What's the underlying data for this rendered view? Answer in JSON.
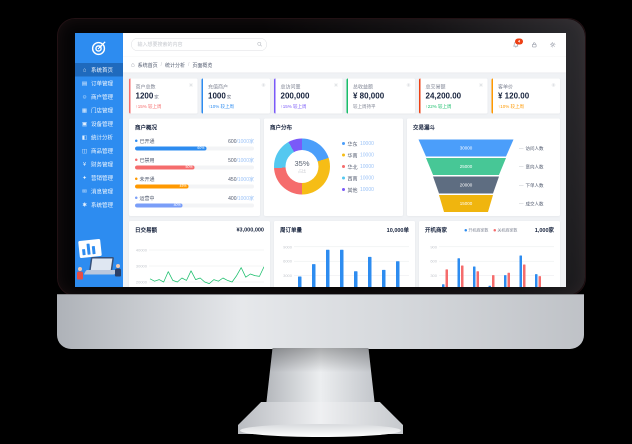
{
  "header": {
    "search_placeholder": "输入想要搜索的内容",
    "notification_badge": "4",
    "breadcrumb": {
      "items": [
        "系统首页",
        "统计分析",
        "页面概览"
      ]
    }
  },
  "sidebar": {
    "items": [
      {
        "icon": "home",
        "label": "系统首页",
        "active": true
      },
      {
        "icon": "order",
        "label": "订单管理",
        "active": false
      },
      {
        "icon": "user",
        "label": "商户管理",
        "active": false
      },
      {
        "icon": "store",
        "label": "门店管理",
        "active": false
      },
      {
        "icon": "device",
        "label": "设备管理",
        "active": false
      },
      {
        "icon": "stats",
        "label": "统计分析",
        "active": false
      },
      {
        "icon": "goods",
        "label": "商品管理",
        "active": false
      },
      {
        "icon": "finance",
        "label": "财务管理",
        "active": false
      },
      {
        "icon": "marketing",
        "label": "营销管理",
        "active": false
      },
      {
        "icon": "message",
        "label": "消息管理",
        "active": false
      },
      {
        "icon": "system",
        "label": "系统管理",
        "active": false
      }
    ]
  },
  "stat_cards": [
    {
      "label": "商户总数",
      "value": "1200",
      "unit": "家",
      "trend": "↑15% 较上周",
      "accent": "#f56c6c",
      "trend_color": "#f56c6c"
    },
    {
      "label": "充值商户",
      "value": "1000",
      "unit": "家",
      "trend": "↑10% 较上周",
      "accent": "#2d8cf0",
      "trend_color": "#2d8cf0"
    },
    {
      "label": "总访问量",
      "value": "200,000",
      "unit": "",
      "trend": "↑15% 较上周",
      "accent": "#7a5af8",
      "trend_color": "#7a5af8"
    },
    {
      "label": "总收益额",
      "value": "¥ 80,000",
      "unit": "",
      "trend": "较上周持平",
      "accent": "#19be6b",
      "trend_color": "#808695"
    },
    {
      "label": "总交易额",
      "value": "24,200.00",
      "unit": "",
      "trend": "↑22% 较上周",
      "accent": "#ed4014",
      "trend_color": "#19be6b"
    },
    {
      "label": "客单价",
      "value": "¥ 120.00",
      "unit": "",
      "trend": "↑10% 较上周",
      "accent": "#ff9900",
      "trend_color": "#ff9900"
    }
  ],
  "chart_data": [
    {
      "type": "bar",
      "variant": "progress-list",
      "title": "商户概况",
      "items": [
        {
          "label": "已开通",
          "value": "600",
          "denom": "/1000家",
          "percent": 60,
          "color": "#2d8cf0"
        },
        {
          "label": "已禁用",
          "value": "500",
          "denom": "/1000家",
          "percent": 50,
          "color": "#f56c6c"
        },
        {
          "label": "未开通",
          "value": "450",
          "denom": "/1000家",
          "percent": 45,
          "color": "#ff9900"
        },
        {
          "label": "运营中",
          "value": "400",
          "denom": "/1000家",
          "percent": 40,
          "color": "#7a9ef8"
        }
      ]
    },
    {
      "type": "pie",
      "title": "商户分布",
      "center_value": "35%",
      "center_label": "占比",
      "legend_position": "right",
      "slices": [
        {
          "label": "华东",
          "value": "10000",
          "percent": 20,
          "color": "#4b9efa"
        },
        {
          "label": "华南",
          "value": "10000",
          "percent": 30,
          "color": "#f6bd16"
        },
        {
          "label": "华北",
          "value": "10000",
          "percent": 24,
          "color": "#f56c6c"
        },
        {
          "label": "西南",
          "value": "10000",
          "percent": 18,
          "color": "#54c8f0"
        },
        {
          "label": "其他",
          "value": "10000",
          "percent": 8,
          "color": "#7a5af8"
        }
      ]
    },
    {
      "type": "funnel",
      "title": "交易漏斗",
      "steps": [
        {
          "label": "访问人数",
          "value": "30000",
          "color": "#4b9efa",
          "top_width": 190,
          "bottom_width": 160
        },
        {
          "label": "意向人数",
          "value": "25000",
          "color": "#47c796",
          "top_width": 160,
          "bottom_width": 132
        },
        {
          "label": "下单人数",
          "value": "20000",
          "color": "#5e6d81",
          "top_width": 132,
          "bottom_width": 108
        },
        {
          "label": "成交人数",
          "value": "15000",
          "color": "#f0b50e",
          "top_width": 108,
          "bottom_width": 88
        }
      ]
    },
    {
      "type": "line",
      "title": "日交易额",
      "total": "¥3,000,000",
      "color": "#19be6b",
      "yticks": [
        40000,
        30000,
        20000
      ],
      "ymin": 15000,
      "ymax": 45000,
      "grid": true,
      "values": [
        22000,
        20500,
        21500,
        20000,
        26500,
        21000,
        20000,
        22500,
        21000,
        27000,
        21500,
        22500,
        20000,
        19000,
        21500,
        20500,
        22500,
        21000,
        20000,
        24000,
        29000,
        23000,
        25000,
        24000,
        23500,
        29500
      ]
    },
    {
      "type": "bar",
      "title": "周订单量",
      "total": "10,000单",
      "color": "#2d8cf0",
      "yticks": [
        9000,
        6000,
        3000
      ],
      "ymax": 10000,
      "grid": true,
      "values": [
        2800,
        5400,
        8400,
        8400,
        3900,
        6900,
        4200,
        6000
      ]
    },
    {
      "type": "bar",
      "variant": "grouped",
      "title": "开机商家",
      "total": "1,000家",
      "yticks": [
        900,
        600,
        300
      ],
      "ymax": 1000,
      "grid": true,
      "series": [
        {
          "name": "开机商家数",
          "color": "#2d8cf0"
        },
        {
          "name": "关机商家数",
          "color": "#f56c6c"
        }
      ],
      "groups": [
        [
          120,
          430
        ],
        [
          660,
          510
        ],
        [
          490,
          390
        ],
        [
          90,
          310
        ],
        [
          310,
          360
        ],
        [
          720,
          530
        ],
        [
          330,
          290
        ]
      ]
    }
  ]
}
